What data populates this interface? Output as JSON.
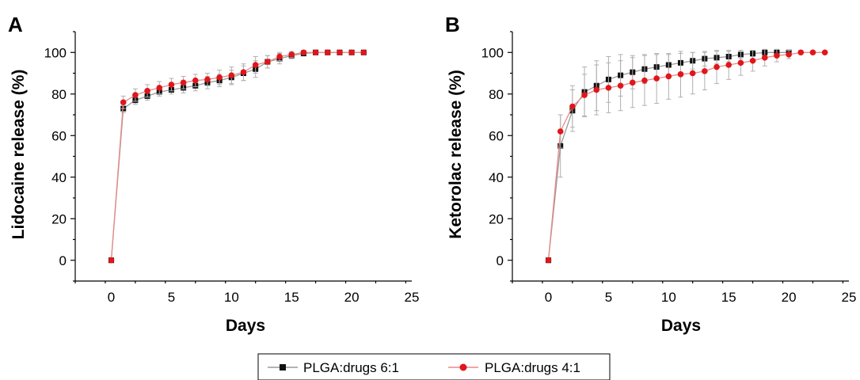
{
  "colors": {
    "series_a": "#111111",
    "series_b": "#e0161b",
    "line_a": "#9a9a9a",
    "line_b": "#e88a8a",
    "errorbar": "#b0b0b0"
  },
  "legend": {
    "placement": "bottom-center",
    "items": [
      {
        "label": "PLGA:drugs 6:1",
        "marker": "square",
        "color": "#111111"
      },
      {
        "label": "PLGA:drugs 4:1",
        "marker": "circle",
        "color": "#e0161b"
      }
    ]
  },
  "chart_data": [
    {
      "panel": "A",
      "type": "line",
      "xlabel": "Days",
      "ylabel": "Lidocaine release (%)",
      "xlim": [
        -3,
        25
      ],
      "ylim": [
        -10,
        110
      ],
      "xticks": [
        0,
        5,
        10,
        15,
        20,
        25
      ],
      "yticks": [
        0,
        20,
        40,
        60,
        80,
        100
      ],
      "grid": false,
      "series": [
        {
          "name": "PLGA:drugs 6:1",
          "marker": "square",
          "x": [
            0,
            1,
            2,
            3,
            4,
            5,
            6,
            7,
            8,
            9,
            10,
            11,
            12,
            13,
            14,
            15,
            16,
            17,
            18,
            19,
            20,
            21
          ],
          "y": [
            0,
            73,
            77,
            79,
            81,
            82,
            83,
            84,
            85.5,
            86.5,
            88,
            90,
            92,
            95.5,
            97,
            98.5,
            99.5,
            100,
            100,
            100,
            100,
            100
          ],
          "err": [
            0,
            2,
            2,
            2,
            2,
            2,
            2.5,
            2.5,
            3,
            3,
            3.5,
            3.5,
            4,
            3,
            2.5,
            1.5,
            1,
            0.5,
            0.5,
            0.5,
            0.5,
            0.5
          ]
        },
        {
          "name": "PLGA:drugs 4:1",
          "marker": "circle",
          "x": [
            0,
            1,
            2,
            3,
            4,
            5,
            6,
            7,
            8,
            9,
            10,
            11,
            12,
            13,
            14,
            15,
            16,
            17,
            18,
            19,
            20,
            21
          ],
          "y": [
            0,
            76,
            79.5,
            81.5,
            83,
            84.5,
            85.5,
            86.5,
            87,
            88,
            89,
            90.5,
            94,
            95.5,
            98,
            99,
            100,
            100,
            100,
            100,
            100,
            100
          ],
          "err": [
            0,
            3,
            3,
            3,
            3,
            3,
            3,
            3,
            3,
            3.5,
            4,
            4,
            4,
            3,
            2,
            1.5,
            1,
            0.5,
            0.5,
            0.5,
            0.5,
            0.5
          ]
        }
      ]
    },
    {
      "panel": "B",
      "type": "line",
      "xlabel": "Days",
      "ylabel": "Ketorolac release (%)",
      "xlim": [
        -3,
        25
      ],
      "ylim": [
        -10,
        110
      ],
      "xticks": [
        0,
        5,
        10,
        15,
        20,
        25
      ],
      "yticks": [
        0,
        20,
        40,
        60,
        80,
        100
      ],
      "grid": false,
      "series": [
        {
          "name": "PLGA:drugs 6:1",
          "marker": "square",
          "x": [
            0,
            1,
            2,
            3,
            4,
            5,
            6,
            7,
            8,
            9,
            10,
            11,
            12,
            13,
            14,
            15,
            16,
            17,
            18,
            19,
            20
          ],
          "y": [
            0,
            55,
            72,
            81,
            84,
            87,
            89,
            90.5,
            92,
            93,
            94,
            95,
            96,
            97,
            97.5,
            98,
            99,
            99.5,
            100,
            100,
            100
          ],
          "err": [
            0,
            15,
            10,
            12,
            12,
            11,
            10,
            8,
            7,
            6,
            5,
            4.5,
            4,
            3.5,
            3,
            2.5,
            2,
            1.5,
            1,
            1,
            1
          ]
        },
        {
          "name": "PLGA:drugs 4:1",
          "marker": "circle",
          "x": [
            0,
            1,
            2,
            3,
            4,
            5,
            6,
            7,
            8,
            9,
            10,
            11,
            12,
            13,
            14,
            15,
            16,
            17,
            18,
            19,
            20,
            21,
            22,
            23
          ],
          "y": [
            0,
            62,
            74,
            79.5,
            82,
            83,
            84,
            85.5,
            86.5,
            87.5,
            88.5,
            89.5,
            90,
            91,
            93,
            94,
            95,
            96,
            97.5,
            98.5,
            99,
            100,
            100,
            100
          ],
          "err": [
            0,
            8,
            10,
            10,
            12,
            12,
            12,
            12,
            12,
            12,
            11,
            11,
            10,
            9,
            8,
            7,
            6,
            5,
            4,
            3,
            2,
            1,
            0.5,
            0.5
          ]
        }
      ]
    }
  ]
}
